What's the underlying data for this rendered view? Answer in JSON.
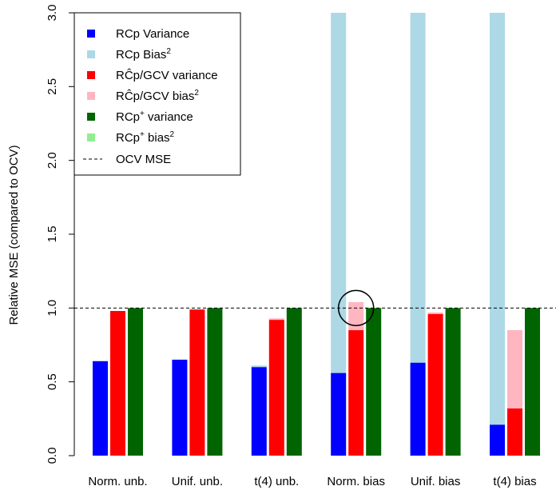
{
  "chart_data": {
    "type": "bar",
    "stacked_groups": true,
    "ylabel": "Relative MSE (compared to OCV)",
    "ylim": [
      0,
      3.0
    ],
    "yticks": [
      "0.0",
      "0.5",
      "1.0",
      "1.5",
      "2.0",
      "2.5",
      "3.0"
    ],
    "categories": [
      "Norm. unb.",
      "Unif. unb.",
      "t(4) unb.",
      "Norm. bias",
      "Unif. bias",
      "t(4) bias"
    ],
    "reference_line": {
      "name": "OCV MSE",
      "value": 1.0,
      "style": "dashed"
    },
    "series": [
      {
        "name": "RCp Variance",
        "color": "#0000ff",
        "group": "RCp",
        "values": [
          0.64,
          0.65,
          0.6,
          0.56,
          0.63,
          0.21
        ]
      },
      {
        "name": "RCp Bias",
        "name_sup": "2",
        "color": "#add8e6",
        "group": "RCp",
        "values": [
          0.0,
          0.0,
          0.01,
          2.44,
          2.37,
          2.79
        ]
      },
      {
        "name": "RĈp/GCV variance",
        "color": "#ff0000",
        "group": "RCp_hat",
        "values": [
          0.98,
          0.99,
          0.92,
          0.85,
          0.96,
          0.32
        ]
      },
      {
        "name": "RĈp/GCV bias",
        "name_sup": "2",
        "color": "#ffb6c1",
        "group": "RCp_hat",
        "values": [
          0.0,
          0.0,
          0.01,
          0.19,
          0.01,
          0.53
        ]
      },
      {
        "name": "RCp",
        "name_sup": "+",
        "name_suffix": " variance",
        "color": "#006400",
        "group": "RCp_plus",
        "values": [
          1.0,
          1.0,
          1.0,
          1.0,
          1.0,
          1.0
        ]
      },
      {
        "name": "RCp",
        "name_sup": "+",
        "name_suffix": " bias",
        "name_sup2": "2",
        "color": "#90ee90",
        "group": "RCp_plus",
        "values": [
          0.0,
          0.0,
          0.0,
          0.0,
          0.0,
          0.0
        ]
      }
    ],
    "annotations": [
      {
        "type": "circle",
        "category": "Norm. bias",
        "group": "RCp_hat",
        "value": 1.0
      }
    ],
    "grid": false,
    "legend_position": "top-left"
  }
}
